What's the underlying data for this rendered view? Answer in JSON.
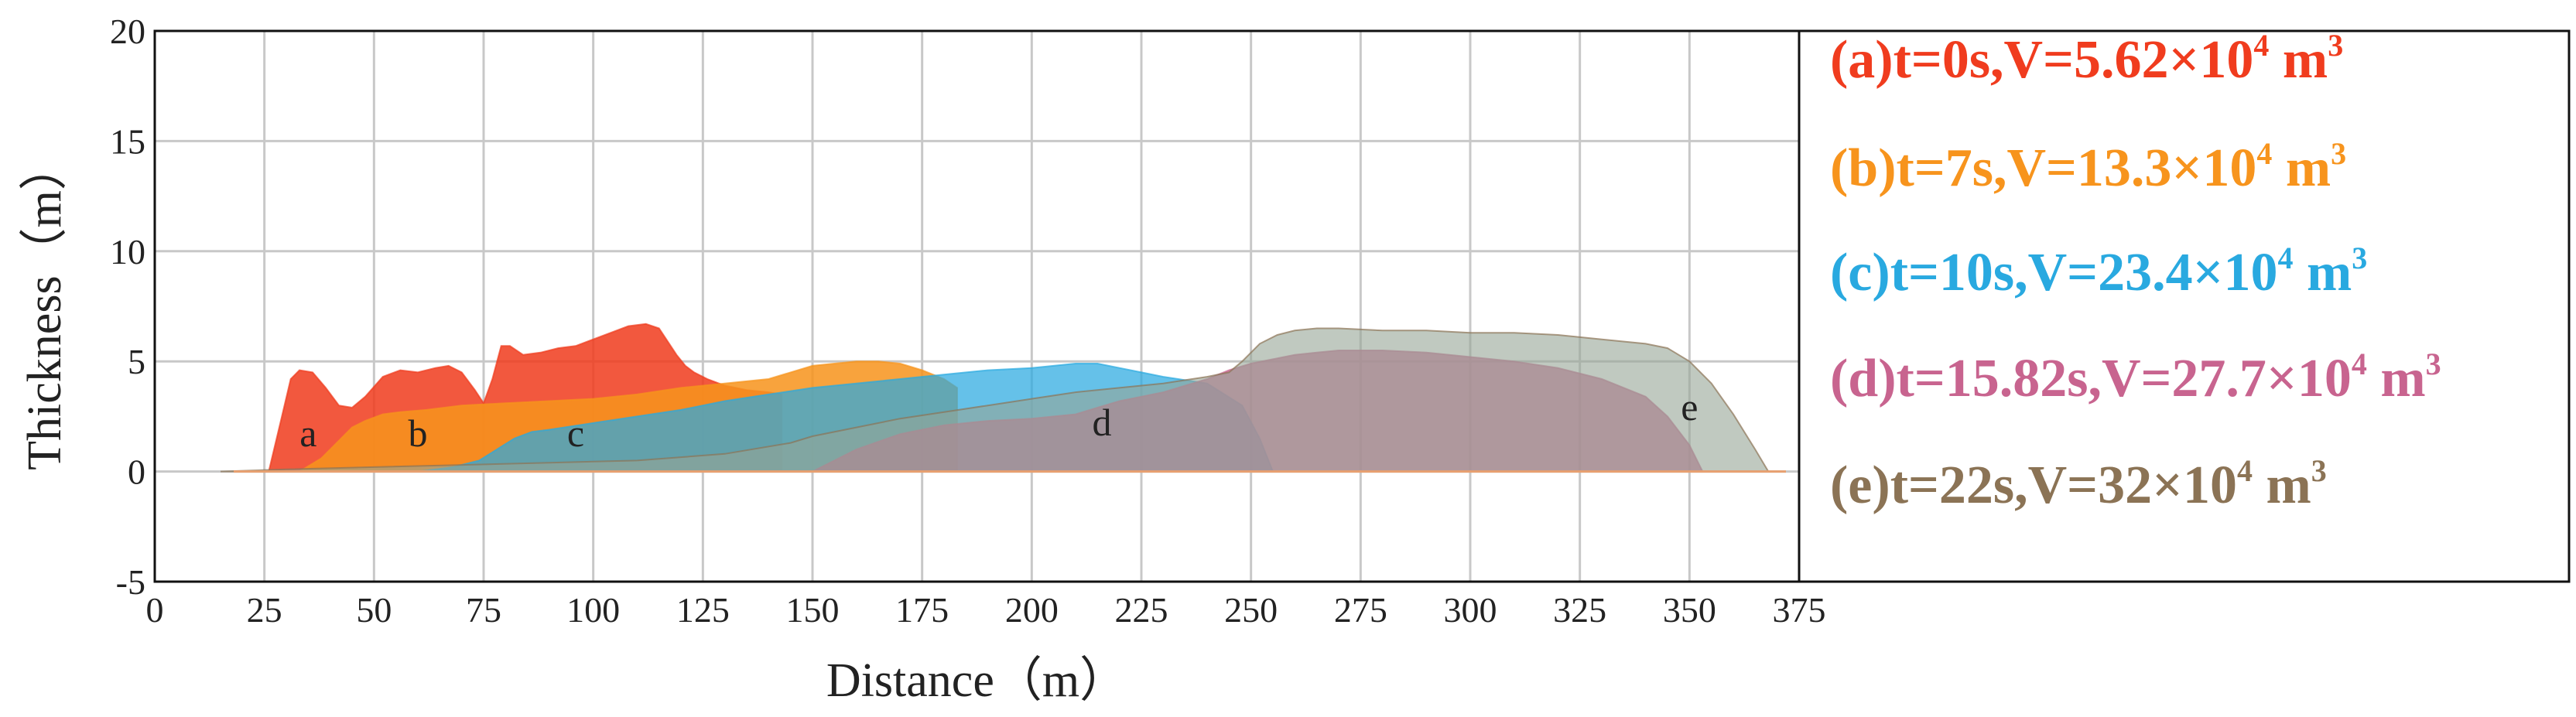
{
  "chart_data": {
    "type": "area",
    "title": "",
    "xlabel": "Distance（m）",
    "ylabel": "Thickness（m）",
    "xlim": [
      0,
      375
    ],
    "ylim": [
      -5,
      20
    ],
    "x_ticks": [
      0,
      25,
      50,
      75,
      100,
      125,
      150,
      175,
      200,
      225,
      250,
      275,
      300,
      325,
      350,
      375
    ],
    "y_ticks": [
      -5,
      0,
      5,
      10,
      15,
      20
    ],
    "grid": true,
    "legend_position": "right",
    "series": [
      {
        "name": "(a)t=0s,V=5.62×10⁴ m³",
        "legend": {
          "main": "(a)t=0s,V=5.62×10",
          "exp": "4",
          "unit": " m",
          "unit_exp": "3"
        },
        "label": "a",
        "label_at": [
          35,
          1.0
        ],
        "color": "#f03c1e",
        "fill": "rgba(240,60,30,0.86)",
        "x": [
          20,
          26,
          29,
          31,
          33,
          36,
          39,
          42,
          45,
          48,
          52,
          56,
          60,
          64,
          67,
          70,
          73,
          75,
          77,
          79,
          81,
          84,
          88,
          92,
          96,
          100,
          104,
          108,
          112,
          115,
          117,
          119,
          121,
          123,
          126,
          130,
          135,
          140,
          143
        ],
        "y": [
          0,
          0,
          2.5,
          4.2,
          4.6,
          4.5,
          3.8,
          3.0,
          2.9,
          3.4,
          4.3,
          4.6,
          4.5,
          4.7,
          4.8,
          4.5,
          3.7,
          3.1,
          4.2,
          5.7,
          5.7,
          5.3,
          5.4,
          5.6,
          5.7,
          6.0,
          6.3,
          6.6,
          6.7,
          6.5,
          5.9,
          5.3,
          4.8,
          4.5,
          4.2,
          3.9,
          3.7,
          3.6,
          3.5
        ]
      },
      {
        "name": "(b)t=7s,V=13.3×10⁴ m³",
        "legend": {
          "main": "(b)t=7s,V=13.3×10",
          "exp": "4",
          "unit": " m",
          "unit_exp": "3"
        },
        "label": "b",
        "label_at": [
          60,
          1.0
        ],
        "color": "#f7941d",
        "fill": "rgba(247,148,29,0.86)",
        "x": [
          33,
          38,
          42,
          45,
          48,
          52,
          56,
          62,
          70,
          80,
          90,
          100,
          110,
          120,
          130,
          140,
          145,
          150,
          155,
          160,
          165,
          170,
          175,
          180,
          183
        ],
        "y": [
          0,
          0.6,
          1.4,
          2.0,
          2.3,
          2.6,
          2.7,
          2.8,
          3.0,
          3.1,
          3.2,
          3.3,
          3.5,
          3.8,
          4.0,
          4.2,
          4.5,
          4.8,
          4.9,
          5.0,
          5.0,
          4.9,
          4.6,
          4.2,
          3.8
        ]
      },
      {
        "name": "(c)t=10s,V=23.4×10⁴ m³",
        "legend": {
          "main": "(c)t=10s,V=23.4×10",
          "exp": "4",
          "unit": " m",
          "unit_exp": "3"
        },
        "label": "c",
        "label_at": [
          96,
          1.0
        ],
        "color": "#29a9e0",
        "fill": "rgba(41,169,224,0.72)",
        "x": [
          60,
          68,
          74,
          78,
          82,
          86,
          90,
          100,
          110,
          120,
          130,
          140,
          150,
          160,
          170,
          180,
          190,
          200,
          205,
          210,
          215,
          220,
          225,
          230,
          240,
          248,
          252,
          255
        ],
        "y": [
          0,
          0.2,
          0.5,
          1.0,
          1.5,
          1.8,
          1.9,
          2.2,
          2.5,
          2.8,
          3.2,
          3.5,
          3.8,
          4.0,
          4.2,
          4.4,
          4.6,
          4.7,
          4.8,
          4.9,
          4.9,
          4.7,
          4.5,
          4.3,
          4.0,
          3.0,
          1.5,
          0
        ]
      },
      {
        "name": "(d)t=15.82s,V=27.7×10⁴ m³",
        "legend": {
          "main": "(d)t=15.82s,V=27.7×10",
          "exp": "4",
          "unit": " m",
          "unit_exp": "3"
        },
        "label": "d",
        "label_at": [
          216,
          1.5
        ],
        "color": "#c8648f",
        "fill": "rgba(200,100,143,0.78)",
        "x": [
          150,
          160,
          170,
          180,
          190,
          200,
          205,
          210,
          215,
          220,
          225,
          230,
          235,
          240,
          245,
          250,
          255,
          260,
          265,
          270,
          280,
          290,
          300,
          310,
          320,
          330,
          340,
          345,
          350,
          353
        ],
        "y": [
          0,
          1.0,
          1.7,
          2.1,
          2.3,
          2.4,
          2.5,
          2.6,
          2.9,
          3.2,
          3.4,
          3.6,
          3.9,
          4.2,
          4.6,
          4.9,
          5.1,
          5.3,
          5.4,
          5.5,
          5.5,
          5.4,
          5.2,
          5.0,
          4.7,
          4.2,
          3.4,
          2.5,
          1.2,
          0
        ]
      },
      {
        "name": "(e)t=22s,V=32×10⁴ m³",
        "legend": {
          "main": "(e)t=22s,V=32×10",
          "exp": "4",
          "unit": " m",
          "unit_exp": "3"
        },
        "label": "e",
        "label_at": [
          350,
          2.2
        ],
        "color": "#8b7355",
        "fill": "rgba(150,165,150,0.60)",
        "x": [
          15,
          30,
          50,
          70,
          90,
          110,
          130,
          145,
          150,
          160,
          170,
          180,
          190,
          200,
          210,
          220,
          230,
          240,
          245,
          248,
          252,
          256,
          260,
          265,
          270,
          280,
          290,
          300,
          310,
          320,
          330,
          340,
          345,
          350,
          355,
          360,
          365,
          368
        ],
        "y": [
          0,
          0.1,
          0.2,
          0.3,
          0.4,
          0.5,
          0.8,
          1.3,
          1.6,
          2.0,
          2.4,
          2.7,
          3.0,
          3.3,
          3.6,
          3.8,
          4.0,
          4.3,
          4.5,
          5.0,
          5.8,
          6.2,
          6.4,
          6.5,
          6.5,
          6.4,
          6.4,
          6.3,
          6.3,
          6.2,
          6.0,
          5.8,
          5.6,
          5.0,
          4.0,
          2.6,
          1.0,
          0
        ]
      }
    ]
  }
}
